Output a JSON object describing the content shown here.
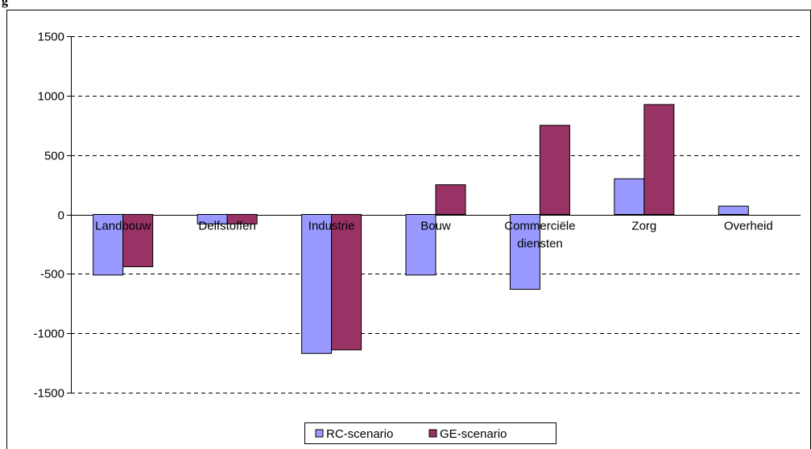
{
  "caption": "g",
  "chart_data": {
    "type": "bar",
    "categories": [
      "Landbouw",
      "Delfstoffen",
      "Industrie",
      "Bouw",
      "Commerciële diensten",
      "Zorg",
      "Overheid"
    ],
    "category_lines": [
      [
        "Landbouw"
      ],
      [
        "Delfstoffen"
      ],
      [
        "Industrie"
      ],
      [
        "Bouw"
      ],
      [
        "Commerciële",
        "diensten"
      ],
      [
        "Zorg"
      ],
      [
        "Overheid"
      ]
    ],
    "series": [
      {
        "name": "RC-scenario",
        "color": "#9999ff",
        "values": [
          -510,
          -80,
          -1170,
          -510,
          -630,
          300,
          70
        ]
      },
      {
        "name": "GE-scenario",
        "color": "#993366",
        "values": [
          -440,
          -80,
          -1140,
          250,
          750,
          925,
          0
        ]
      }
    ],
    "yticks": [
      "1500",
      "1000",
      "500",
      "0",
      "-500",
      "-1000",
      "-1500"
    ],
    "ylim": [
      -1500,
      1500
    ],
    "grid": "dashed horizontal",
    "legend": "bottom-center",
    "title": "",
    "xlabel": "",
    "ylabel": ""
  }
}
